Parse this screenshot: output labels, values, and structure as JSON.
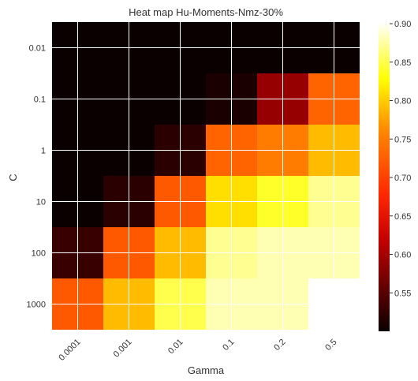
{
  "chart_data": {
    "type": "heatmap",
    "title": "Heat map Hu-Moments-Nmz-30%",
    "xlabel": "Gamma",
    "ylabel": "C",
    "x_categories": [
      "0.0001",
      "0.001",
      "0.01",
      "0.1",
      "0.2",
      "0.5"
    ],
    "y_categories": [
      "0.01",
      "0.1",
      "1",
      "10",
      "100",
      "1000"
    ],
    "values": [
      [
        0.5,
        0.5,
        0.5,
        0.5,
        0.5,
        0.5
      ],
      [
        0.5,
        0.5,
        0.5,
        0.51,
        0.59,
        0.73
      ],
      [
        0.5,
        0.5,
        0.52,
        0.73,
        0.75,
        0.79
      ],
      [
        0.5,
        0.52,
        0.72,
        0.81,
        0.84,
        0.87
      ],
      [
        0.53,
        0.72,
        0.79,
        0.87,
        0.88,
        0.88
      ],
      [
        0.72,
        0.79,
        0.85,
        0.88,
        0.88,
        null
      ]
    ],
    "colormap": "hot",
    "colorbar": {
      "min": 0.5,
      "max": 0.9,
      "ticks": [
        "0.55",
        "0.60",
        "0.65",
        "0.70",
        "0.75",
        "0.80",
        "0.85",
        "0.90"
      ]
    },
    "grid": true
  }
}
